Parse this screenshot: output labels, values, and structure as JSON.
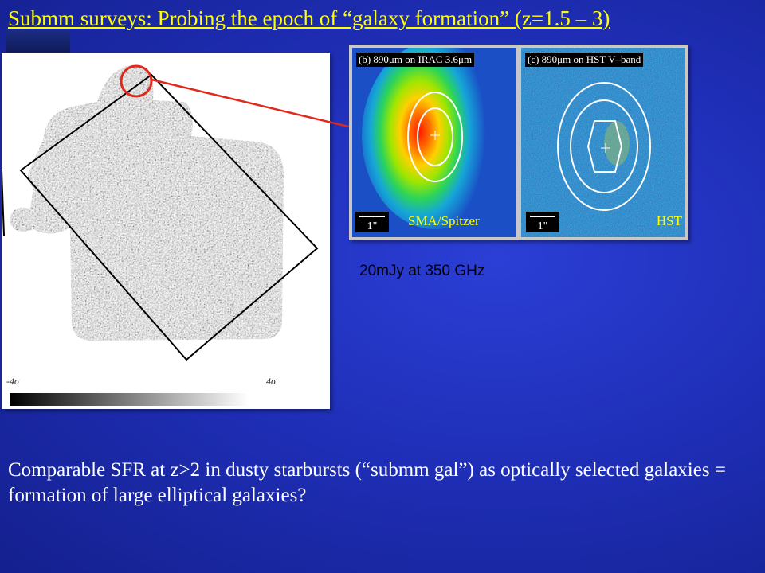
{
  "slide": {
    "title": "Submm surveys:  Probing the epoch of “galaxy formation” (z=1.5 – 3)",
    "flux_label": "20mJy at 350 GHz",
    "body_text": " Comparable SFR at z>2 in dusty starbursts (“submm gal”) as optically selected galaxies = formation of large elliptical galaxies?"
  },
  "map": {
    "scale_left": "-4σ",
    "scale_right": "4σ"
  },
  "insets": [
    {
      "title": "(b) 890μm on IRAC 3.6μm",
      "scale": "1\"",
      "caption": "SMA/Spitzer"
    },
    {
      "title": "(c) 890μm on HST V–band",
      "scale": "1\"",
      "caption": "HST"
    }
  ],
  "colors": {
    "title": "#ffff00",
    "caption": "#ffff00",
    "highlight_circle": "#e0281c",
    "arrow": "#e0281c"
  }
}
